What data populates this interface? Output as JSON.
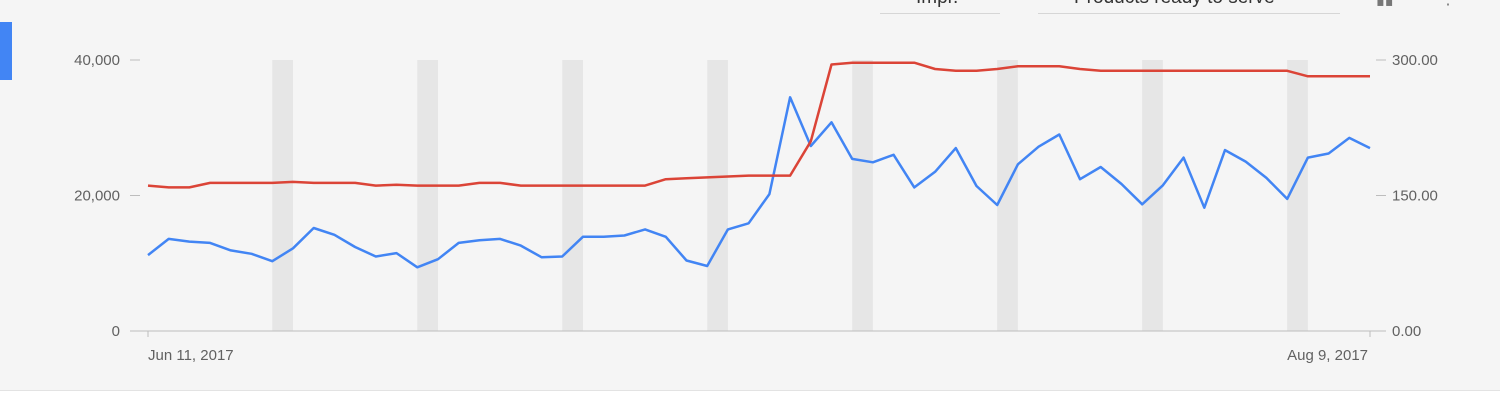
{
  "controls": {
    "metric_dropdown": "Impr.",
    "filter_dropdown": "Products ready to serve"
  },
  "colors": {
    "accent": "#4285f4",
    "impressions": "#4285f4",
    "products": "#db4437",
    "weekend_band": "#e6e6e6"
  },
  "chart_data": {
    "type": "line",
    "title": "",
    "x_start": "2017-06-11",
    "x_end": "2017-08-09",
    "x_tick_labels": [
      "Jun 11, 2017",
      "Aug 9, 2017"
    ],
    "weekend_bands": [
      "Jun 17",
      "Jun 24",
      "Jul 1",
      "Jul 8",
      "Jul 15",
      "Jul 22",
      "Jul 29",
      "Aug 5"
    ],
    "y_left": {
      "ticks": [
        "0",
        "20,000",
        "40,000"
      ],
      "range": [
        0,
        40000
      ]
    },
    "y_right": {
      "ticks": [
        "0.00",
        "150.00",
        "300.00"
      ],
      "range": [
        0,
        300
      ]
    },
    "series": [
      {
        "axis": "left",
        "color": "#4285f4",
        "values": [
          11200,
          13600,
          13200,
          13000,
          11900,
          11400,
          10300,
          12200,
          15200,
          14200,
          12400,
          11000,
          11500,
          9400,
          10600,
          13000,
          13400,
          13600,
          12600,
          10900,
          11000,
          13900,
          13900,
          14100,
          15000,
          13900,
          10400,
          9600,
          15000,
          15900,
          20200,
          34500,
          27300,
          30800,
          25400,
          24900,
          26000,
          21200,
          23500,
          27000,
          21400,
          18600,
          24600,
          27200,
          29000,
          22400,
          24200,
          21700,
          18700,
          21500,
          25600,
          18200,
          26700,
          25000,
          22600,
          19500,
          25600,
          26200,
          28500,
          27000
        ]
      },
      {
        "axis": "right",
        "color": "#db4437",
        "values": [
          161,
          159,
          159,
          164,
          164,
          164,
          164,
          165,
          164,
          164,
          164,
          161,
          162,
          161,
          161,
          161,
          164,
          164,
          161,
          161,
          161,
          161,
          161,
          161,
          161,
          168,
          169,
          170,
          171,
          172,
          172,
          172,
          210,
          295,
          297,
          297,
          297,
          297,
          290,
          288,
          288,
          290,
          293,
          293,
          293,
          290,
          288,
          288,
          288,
          288,
          288,
          288,
          288,
          288,
          288,
          288,
          282,
          282,
          282,
          282
        ]
      }
    ]
  }
}
